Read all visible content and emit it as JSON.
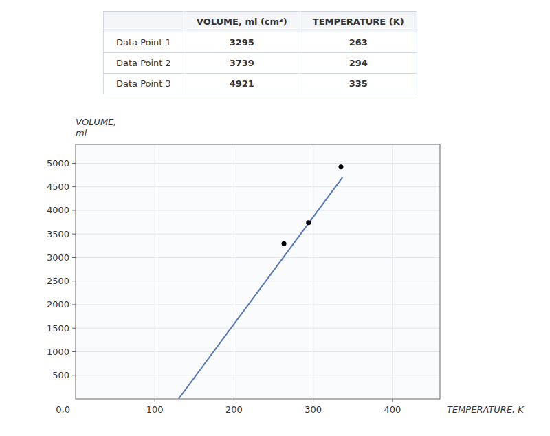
{
  "chart_data": [
    {
      "type": "scatter",
      "xlabel": "TEMPERATURE, K",
      "ylabel": "VOLUME,\nml",
      "annotations": [
        {
          "text": "0,0",
          "x": 0,
          "y": 0
        }
      ],
      "series": [
        {
          "type": "line",
          "color": "#5577bb",
          "x": [
            130,
            337
          ],
          "values": [
            0,
            4700
          ]
        },
        {
          "type": "scatter",
          "color": "#000000",
          "marker": "circle",
          "x": [
            263,
            294,
            335
          ],
          "values": [
            3295,
            3739,
            4921
          ]
        }
      ],
      "xlim": [
        0,
        460
      ],
      "xticks": [
        100,
        200,
        300,
        400
      ],
      "ylim": [
        0,
        5400
      ],
      "yticks": [
        500,
        1000,
        1500,
        2000,
        2500,
        3000,
        3500,
        4000,
        4500,
        5000
      ],
      "grid": true
    },
    {
      "type": "table",
      "categories": [
        "Data Point 1",
        "Data Point 2",
        "Data Point 3"
      ],
      "series": [
        {
          "name": "VOLUME, ml (cm³)",
          "values": [
            3295,
            3739,
            4921
          ]
        },
        {
          "name": "TEMPERATURE (K)",
          "values": [
            263,
            294,
            335
          ]
        }
      ]
    }
  ]
}
